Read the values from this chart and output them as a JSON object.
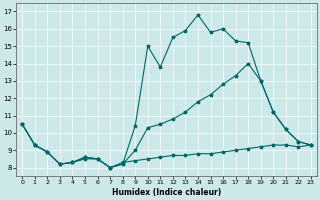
{
  "xlabel": "Humidex (Indice chaleur)",
  "bg_color": "#cde8e8",
  "line_color": "#006666",
  "xlim": [
    -0.5,
    23.5
  ],
  "ylim": [
    7.5,
    17.5
  ],
  "xticks": [
    0,
    1,
    2,
    3,
    4,
    5,
    6,
    7,
    8,
    9,
    10,
    11,
    12,
    13,
    14,
    15,
    16,
    17,
    18,
    19,
    20,
    21,
    22,
    23
  ],
  "yticks": [
    8,
    9,
    10,
    11,
    12,
    13,
    14,
    15,
    16,
    17
  ],
  "series_top_x": [
    0,
    1,
    2,
    3,
    4,
    5,
    6,
    7,
    8,
    9,
    10,
    11,
    12,
    13,
    14,
    15,
    16,
    17,
    18,
    19,
    20,
    21,
    22,
    23
  ],
  "series_top_y": [
    10.5,
    9.3,
    8.9,
    8.2,
    8.3,
    8.6,
    8.5,
    8.0,
    8.2,
    10.4,
    15.0,
    13.8,
    15.5,
    15.9,
    16.8,
    15.8,
    16.0,
    15.3,
    15.2,
    13.0,
    11.2,
    10.2,
    9.5,
    9.3
  ],
  "series_mid_x": [
    0,
    1,
    2,
    3,
    4,
    5,
    6,
    7,
    8,
    9,
    10,
    11,
    12,
    13,
    14,
    15,
    16,
    17,
    18,
    19,
    20,
    21,
    22,
    23
  ],
  "series_mid_y": [
    10.5,
    9.3,
    8.9,
    8.2,
    8.3,
    8.6,
    8.5,
    8.0,
    8.2,
    9.0,
    10.3,
    10.5,
    10.8,
    11.2,
    11.8,
    12.2,
    12.8,
    13.3,
    14.0,
    13.0,
    11.2,
    10.2,
    9.5,
    9.3
  ],
  "series_bot_x": [
    0,
    1,
    2,
    3,
    4,
    5,
    6,
    7,
    8,
    9,
    10,
    11,
    12,
    13,
    14,
    15,
    16,
    17,
    18,
    19,
    20,
    21,
    22,
    23
  ],
  "series_bot_y": [
    10.5,
    9.3,
    8.9,
    8.2,
    8.3,
    8.5,
    8.5,
    8.0,
    8.3,
    8.4,
    8.5,
    8.6,
    8.7,
    8.7,
    8.8,
    8.8,
    8.9,
    9.0,
    9.1,
    9.2,
    9.3,
    9.3,
    9.2,
    9.3
  ]
}
